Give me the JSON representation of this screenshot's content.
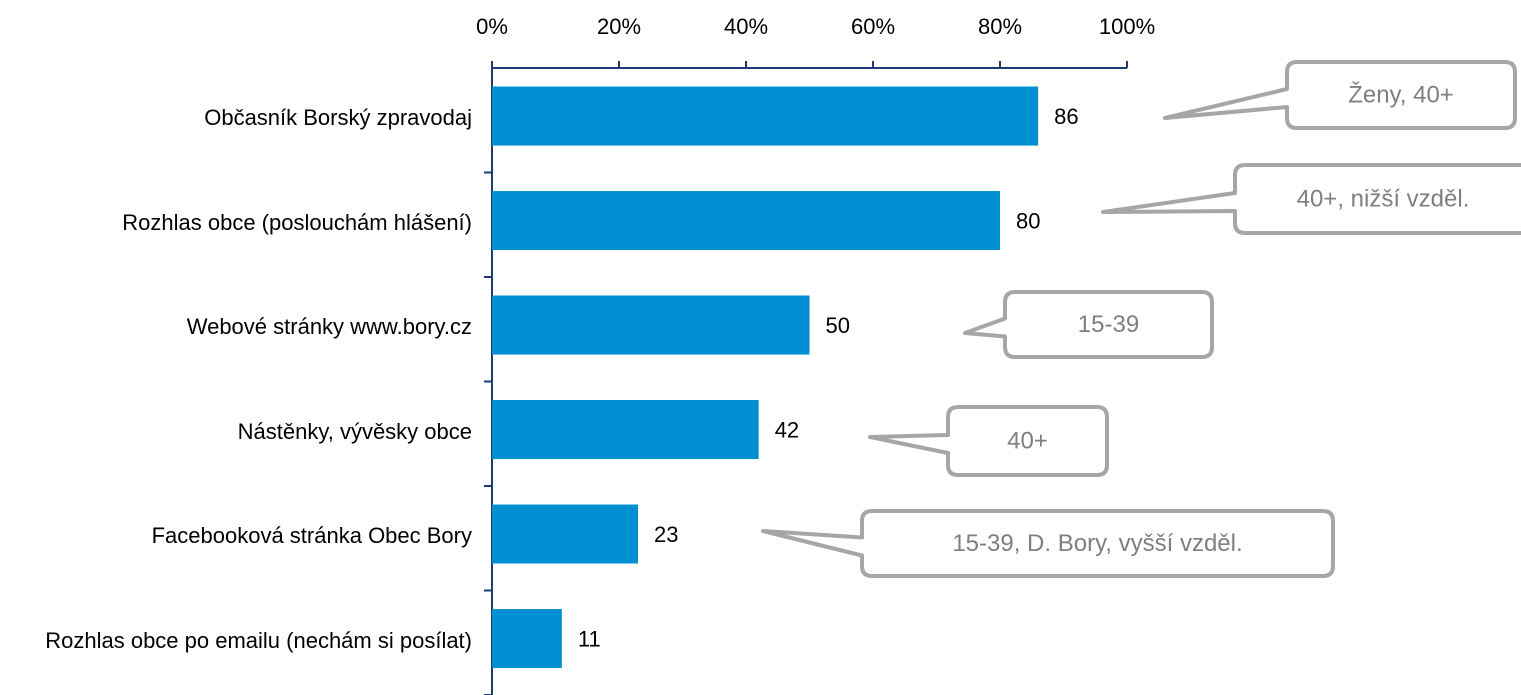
{
  "chart_data": {
    "type": "bar",
    "orientation": "horizontal",
    "categories": [
      "Občasník Borský zpravodaj",
      "Rozhlas obce (poslouchám hlášení)",
      "Webové stránky www.bory.cz",
      "Nástěnky, vývěsky obce",
      "Facebooková stránka Obec Bory",
      "Rozhlas obce po emailu (nechám si posílat)"
    ],
    "values": [
      86,
      80,
      50,
      42,
      23,
      11
    ],
    "color": "#008fd1",
    "xlim": [
      0,
      100
    ],
    "xticks": [
      {
        "value": 0,
        "label": "0%"
      },
      {
        "value": 20,
        "label": "20%"
      },
      {
        "value": 40,
        "label": "40%"
      },
      {
        "value": 60,
        "label": "60%"
      },
      {
        "value": 80,
        "label": "80%"
      },
      {
        "value": 100,
        "label": "100%"
      }
    ],
    "annotations": [
      "Ženy, 40+",
      "40+, nižší vzděl.",
      "15-39",
      "40+",
      "15-39, D. Bory, vyšší vzděl."
    ]
  }
}
